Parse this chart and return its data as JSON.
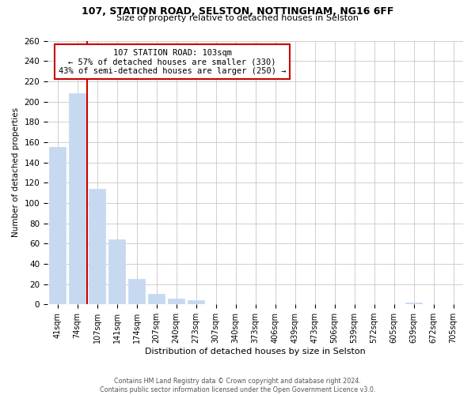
{
  "title1": "107, STATION ROAD, SELSTON, NOTTINGHAM, NG16 6FF",
  "title2": "Size of property relative to detached houses in Selston",
  "xlabel": "Distribution of detached houses by size in Selston",
  "ylabel": "Number of detached properties",
  "bar_labels": [
    "41sqm",
    "74sqm",
    "107sqm",
    "141sqm",
    "174sqm",
    "207sqm",
    "240sqm",
    "273sqm",
    "307sqm",
    "340sqm",
    "373sqm",
    "406sqm",
    "439sqm",
    "473sqm",
    "506sqm",
    "539sqm",
    "572sqm",
    "605sqm",
    "639sqm",
    "672sqm",
    "705sqm"
  ],
  "bar_values": [
    155,
    208,
    114,
    64,
    25,
    10,
    6,
    4,
    0,
    0,
    0,
    0,
    0,
    0,
    0,
    0,
    0,
    0,
    2,
    0,
    0
  ],
  "bar_color": "#c6d9f0",
  "vline_color": "#cc0000",
  "annotation_title": "107 STATION ROAD: 103sqm",
  "annotation_line1": "← 57% of detached houses are smaller (330)",
  "annotation_line2": "43% of semi-detached houses are larger (250) →",
  "annotation_box_color": "#ffffff",
  "annotation_border_color": "#cc0000",
  "ylim": [
    0,
    260
  ],
  "yticks": [
    0,
    20,
    40,
    60,
    80,
    100,
    120,
    140,
    160,
    180,
    200,
    220,
    240,
    260
  ],
  "footer1": "Contains HM Land Registry data © Crown copyright and database right 2024.",
  "footer2": "Contains public sector information licensed under the Open Government Licence v3.0.",
  "bg_color": "#ffffff",
  "grid_color": "#c8c8c8"
}
